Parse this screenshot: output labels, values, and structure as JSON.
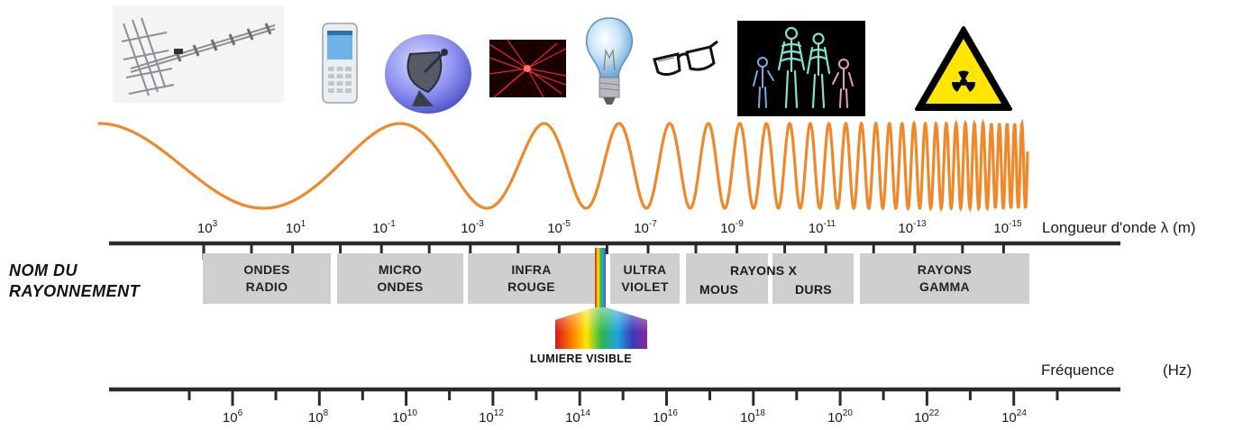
{
  "wavelength_axis": {
    "title": "Longueur d'onde λ (m)",
    "ticks": [
      {
        "base": "10",
        "exp": "3"
      },
      {
        "base": "10",
        "exp": "1"
      },
      {
        "base": "10",
        "exp": "-1"
      },
      {
        "base": "10",
        "exp": "-3"
      },
      {
        "base": "10",
        "exp": "-5"
      },
      {
        "base": "10",
        "exp": "-7"
      },
      {
        "base": "10",
        "exp": "-9"
      },
      {
        "base": "10",
        "exp": "-11"
      },
      {
        "base": "10",
        "exp": "-13"
      },
      {
        "base": "10",
        "exp": "-15"
      }
    ]
  },
  "frequency_axis": {
    "title": "Fréquence",
    "unit": "(Hz)",
    "ticks": [
      {
        "base": "10",
        "exp": "6"
      },
      {
        "base": "10",
        "exp": "8"
      },
      {
        "base": "10",
        "exp": "10"
      },
      {
        "base": "10",
        "exp": "12"
      },
      {
        "base": "10",
        "exp": "14"
      },
      {
        "base": "10",
        "exp": "16"
      },
      {
        "base": "10",
        "exp": "18"
      },
      {
        "base": "10",
        "exp": "20"
      },
      {
        "base": "10",
        "exp": "22"
      },
      {
        "base": "10",
        "exp": "24"
      }
    ]
  },
  "radiation_names_title": [
    "NOM DU",
    "RAYONNEMENT"
  ],
  "bands": [
    {
      "lines": [
        "ONDES",
        "RADIO"
      ]
    },
    {
      "lines": [
        "MICRO",
        "ONDES"
      ]
    },
    {
      "lines": [
        "INFRA",
        "ROUGE"
      ]
    },
    {
      "lines": [
        "ULTRA",
        "VIOLET"
      ]
    },
    {
      "lines": [
        "RAYONS X"
      ],
      "sub": [
        "MOUS",
        "DURS"
      ]
    },
    {
      "lines": [
        "RAYONS",
        "GAMMA"
      ]
    }
  ],
  "visible_light_label": "LUMIERE VISIBLE",
  "wave_color": "#f0882a",
  "band_color": "#cfcfcf",
  "axis_color": "#2b2b2b",
  "icons": [
    "tv-antenna-icon",
    "mobile-phone-icon",
    "satellite-dish-icon",
    "laser-icon",
    "light-bulb-icon",
    "glasses-icon",
    "xray-skeleton-icon",
    "radiation-warning-icon"
  ]
}
